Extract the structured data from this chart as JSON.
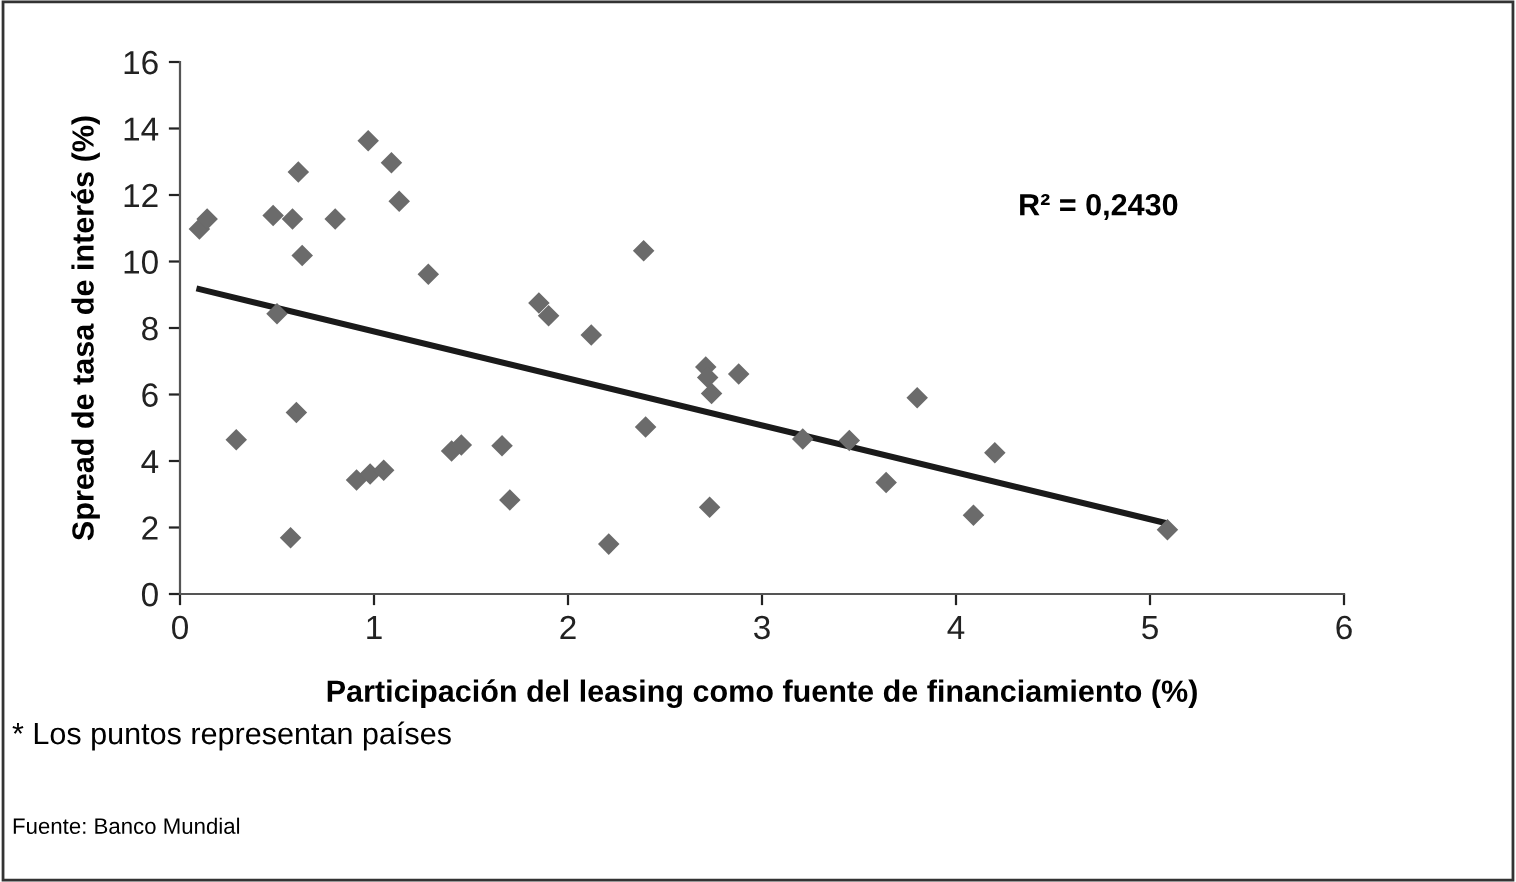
{
  "chart_data": {
    "type": "scatter",
    "xlabel": "Participación del leasing como fuente de financiamiento (%)",
    "ylabel": "Spread de tasa de interés (%)",
    "xlim": [
      0,
      6
    ],
    "ylim": [
      0,
      16
    ],
    "xticks": [
      0,
      1,
      2,
      3,
      4,
      5,
      6
    ],
    "yticks": [
      0,
      2,
      4,
      6,
      8,
      10,
      12,
      14,
      16
    ],
    "grid": false,
    "legend": false,
    "series": [
      {
        "marker": "diamond",
        "color": "#6b6b6b",
        "x": [
          0.1,
          0.14,
          0.29,
          0.48,
          0.5,
          0.58,
          0.61,
          0.63,
          0.6,
          0.57,
          0.8,
          0.91,
          0.97,
          0.98,
          1.05,
          1.09,
          1.13,
          1.28,
          1.4,
          1.45,
          1.66,
          1.7,
          1.85,
          1.9,
          2.12,
          2.21,
          2.39,
          2.4,
          2.71,
          2.72,
          2.74,
          2.88,
          2.73,
          3.21,
          3.45,
          3.64,
          3.8,
          4.09,
          4.2,
          5.09
        ],
        "values": [
          10.98,
          11.28,
          4.64,
          11.38,
          8.43,
          11.28,
          12.69,
          10.18,
          5.46,
          1.69,
          11.28,
          3.43,
          13.63,
          3.61,
          3.72,
          12.97,
          11.81,
          9.62,
          4.3,
          4.48,
          4.46,
          2.83,
          8.75,
          8.37,
          7.79,
          1.5,
          10.32,
          5.02,
          6.83,
          6.51,
          6.03,
          6.62,
          2.61,
          4.66,
          4.62,
          3.35,
          5.9,
          2.37,
          4.25,
          1.93
        ]
      },
      {
        "type": "line",
        "marker": "none",
        "color": "#1a1a1a",
        "x": [
          0.1,
          5.07
        ],
        "values": [
          9.17,
          2.15
        ]
      }
    ],
    "annotations": [
      "R² = 0,2430",
      "* Los puntos representan países",
      "Fuente: Banco Mundial"
    ]
  }
}
